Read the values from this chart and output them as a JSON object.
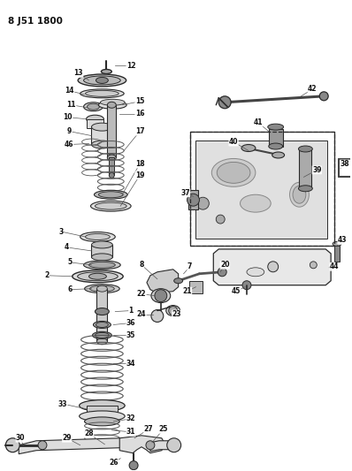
{
  "title": "8 J51 1800",
  "bg_color": "#ffffff",
  "line_color": "#2a2a2a",
  "label_color": "#111111",
  "fig_width": 3.98,
  "fig_height": 5.33,
  "dpi": 100
}
